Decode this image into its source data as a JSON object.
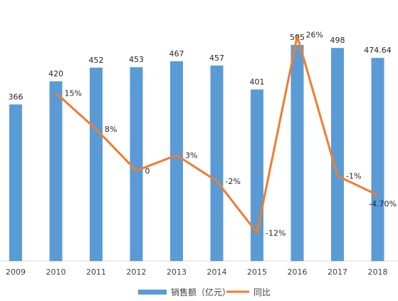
{
  "chart_data": {
    "type": "bar+line",
    "categories": [
      "2009",
      "2010",
      "2011",
      "2012",
      "2013",
      "2014",
      "2015",
      "2016",
      "2017",
      "2018"
    ],
    "series": [
      {
        "name": "销售额（亿元）",
        "type": "bar",
        "color": "#5b9bd5",
        "values": [
          366,
          420,
          452,
          453,
          467,
          457,
          401,
          505,
          498,
          474.64
        ],
        "labels": [
          "366",
          "420",
          "452",
          "453",
          "467",
          "457",
          "401",
          "505",
          "498",
          "474.64"
        ]
      },
      {
        "name": "同比",
        "type": "line",
        "color": "#ed7d31",
        "values": [
          null,
          15,
          8,
          0,
          3,
          -2,
          -12,
          26,
          -1,
          -4.7
        ],
        "labels": [
          "",
          "15%",
          "8%",
          "0",
          "3%",
          "-2%",
          "-12%",
          "26%",
          "-1%",
          "-4.70%"
        ]
      }
    ],
    "bar_axis_range": [
      0,
      550
    ],
    "line_axis_range": [
      -14,
      28
    ],
    "grid": false,
    "legend_position": "bottom"
  }
}
